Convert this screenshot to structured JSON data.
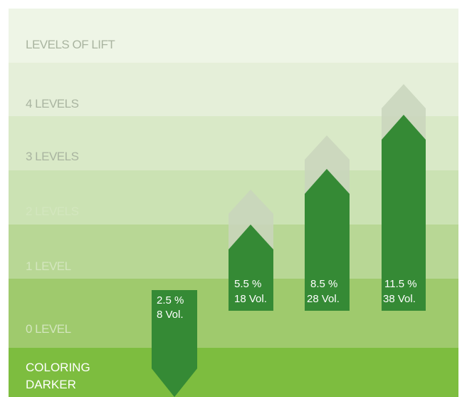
{
  "title": "LEVELS OF LIFT",
  "levels": [
    "4 LEVELS",
    "3 LEVELS",
    "2 LEVELS",
    "1 LEVEL",
    "0 LEVEL"
  ],
  "bottom_label": [
    "COLORING",
    "DARKER"
  ],
  "arrows": [
    {
      "percent": "2.5 %",
      "volume": "8 Vol."
    },
    {
      "percent": "5.5 %",
      "volume": "18 Vol."
    },
    {
      "percent": "8.5 %",
      "volume": "28 Vol."
    },
    {
      "percent": "11.5 %",
      "volume": "38 Vol."
    }
  ]
}
